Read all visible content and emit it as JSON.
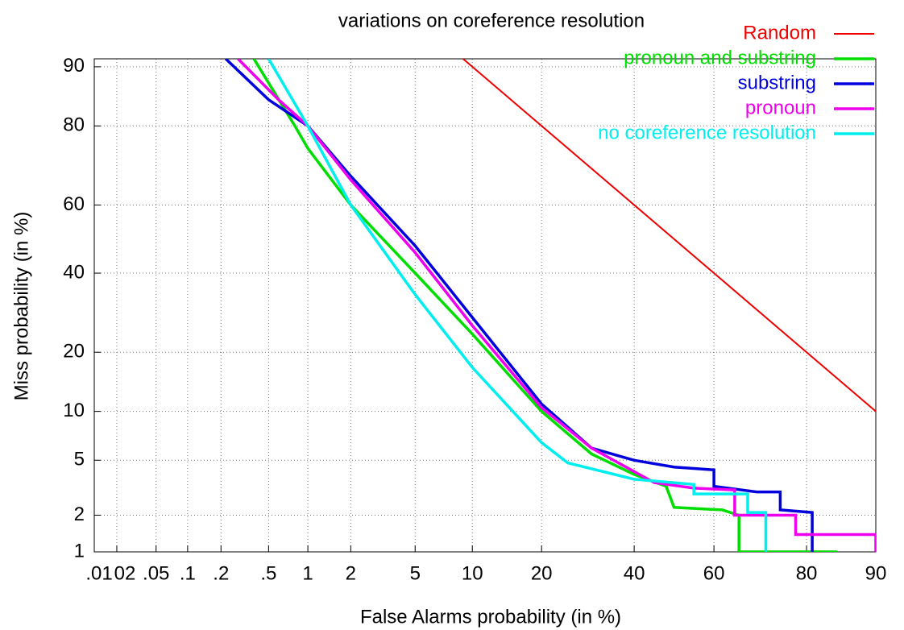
{
  "chart_data": {
    "type": "line",
    "scale": "probit",
    "title": "variations on coreference resolution",
    "xlabel": "False Alarms probability (in %)",
    "ylabel": "Miss probability (in %)",
    "xlim": [
      0.01,
      90
    ],
    "ylim": [
      1,
      91
    ],
    "xticks": [
      {
        "value": 0.01,
        "label": ".01"
      },
      {
        "value": 0.02,
        "label": "02"
      },
      {
        "value": 0.05,
        "label": ".05"
      },
      {
        "value": 0.1,
        "label": ".1"
      },
      {
        "value": 0.2,
        "label": ".2"
      },
      {
        "value": 0.5,
        "label": ".5"
      },
      1,
      2,
      5,
      10,
      20,
      40,
      60,
      80,
      90
    ],
    "yticks": [
      1,
      2,
      5,
      10,
      20,
      40,
      60,
      80,
      90
    ],
    "grid": true,
    "legend": "top-right",
    "series": [
      {
        "name": "Random",
        "color": "#ee0000",
        "x": [
          9,
          90
        ],
        "values": [
          91,
          10
        ]
      },
      {
        "name": "pronoun and substring",
        "color": "#00dd00",
        "x": [
          0.38,
          0.8,
          1,
          2,
          5,
          10,
          20,
          30,
          40,
          48,
          50,
          62,
          66,
          66,
          85
        ],
        "values": [
          91,
          80,
          75,
          60,
          40,
          24,
          10,
          5.5,
          4,
          3.3,
          2.3,
          2.2,
          2,
          1,
          1
        ]
      },
      {
        "name": "substring",
        "color": "#0000dd",
        "x": [
          0.22,
          0.5,
          1,
          2,
          5,
          10,
          20,
          30,
          40,
          50,
          60,
          60,
          70,
          75,
          75,
          81,
          81
        ],
        "values": [
          91,
          85,
          80,
          68,
          48,
          28,
          11,
          6,
          5,
          4.5,
          4.3,
          3.3,
          3,
          3,
          2.2,
          2.1,
          1
        ]
      },
      {
        "name": "pronoun",
        "color": "#ee00ee",
        "x": [
          0.28,
          0.6,
          1,
          2,
          5,
          10,
          20,
          30,
          45,
          55,
          65,
          65,
          78,
          78,
          90,
          90
        ],
        "values": [
          91,
          85,
          80,
          67,
          46,
          26,
          10.5,
          6,
          3.5,
          3.2,
          3.1,
          2,
          2,
          1.4,
          1.4,
          1
        ]
      },
      {
        "name": "no coreference resolution",
        "color": "#00eeee",
        "x": [
          0.5,
          1,
          2,
          5,
          10,
          20,
          25,
          40,
          55,
          55,
          68,
          68,
          72,
          72
        ],
        "values": [
          91,
          80,
          60,
          34,
          17,
          6.5,
          4.8,
          3.7,
          3.4,
          2.9,
          2.9,
          2.1,
          2.1,
          1
        ]
      }
    ]
  }
}
